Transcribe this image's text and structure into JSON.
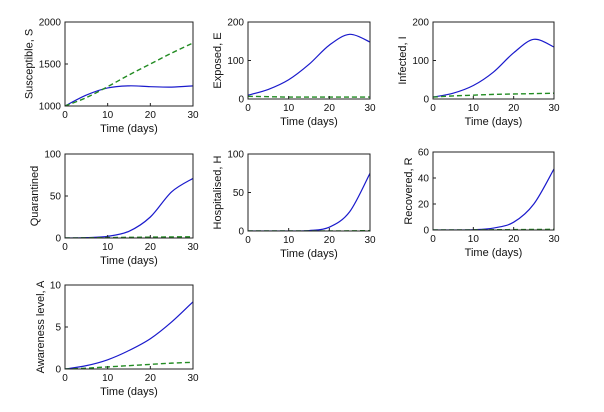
{
  "chart_data": [
    {
      "type": "line",
      "id": "susceptible",
      "xlabel": "Time (days)",
      "ylabel": "Susceptible, S",
      "xlim": [
        0,
        30
      ],
      "ylim": [
        1000,
        2000
      ],
      "xticks": [
        0,
        10,
        20,
        30
      ],
      "xtick_labels": [
        "0",
        "10",
        "20",
        "30"
      ],
      "yticks": [
        1000,
        1500,
        2000
      ],
      "ytick_labels": [
        "1000",
        "1500",
        "2000"
      ],
      "x": [
        0,
        5,
        10,
        15,
        20,
        25,
        30
      ],
      "series": [
        {
          "name": "solid",
          "style": "solid",
          "color": "#1a1acc",
          "values": [
            1000,
            1130,
            1215,
            1240,
            1230,
            1225,
            1240
          ]
        },
        {
          "name": "dashed",
          "style": "dashed",
          "color": "#228b22",
          "values": [
            1000,
            1100,
            1230,
            1370,
            1500,
            1630,
            1750
          ]
        }
      ]
    },
    {
      "type": "line",
      "id": "exposed",
      "xlabel": "Time (days)",
      "ylabel": "Exposed, E",
      "xlim": [
        0,
        30
      ],
      "ylim": [
        0,
        200
      ],
      "xticks": [
        0,
        10,
        20,
        30
      ],
      "xtick_labels": [
        "0",
        "10",
        "20",
        "30"
      ],
      "yticks": [
        0,
        100,
        200
      ],
      "ytick_labels": [
        "0",
        "100",
        "200"
      ],
      "x": [
        0,
        5,
        10,
        15,
        20,
        25,
        30
      ],
      "series": [
        {
          "name": "solid",
          "style": "solid",
          "color": "#1a1acc",
          "values": [
            10,
            25,
            50,
            90,
            140,
            168,
            148
          ]
        },
        {
          "name": "dashed",
          "style": "dashed",
          "color": "#228b22",
          "values": [
            7,
            6,
            5,
            5,
            5,
            5,
            5
          ]
        }
      ]
    },
    {
      "type": "line",
      "id": "infected",
      "xlabel": "Time (days)",
      "ylabel": "Infected, I",
      "xlim": [
        0,
        30
      ],
      "ylim": [
        0,
        200
      ],
      "xticks": [
        0,
        10,
        20,
        30
      ],
      "xtick_labels": [
        "0",
        "10",
        "20",
        "30"
      ],
      "yticks": [
        0,
        100,
        200
      ],
      "ytick_labels": [
        "0",
        "100",
        "200"
      ],
      "x": [
        0,
        5,
        10,
        15,
        20,
        25,
        30
      ],
      "series": [
        {
          "name": "solid",
          "style": "solid",
          "color": "#1a1acc",
          "values": [
            5,
            15,
            35,
            70,
            120,
            155,
            135
          ]
        },
        {
          "name": "dashed",
          "style": "dashed",
          "color": "#228b22",
          "values": [
            5,
            8,
            10,
            12,
            13,
            14,
            15
          ]
        }
      ]
    },
    {
      "type": "line",
      "id": "quarantined",
      "xlabel": "Time (days)",
      "ylabel": "Quarantined",
      "xlim": [
        0,
        30
      ],
      "ylim": [
        0,
        100
      ],
      "xticks": [
        0,
        10,
        20,
        30
      ],
      "xtick_labels": [
        "0",
        "10",
        "20",
        "30"
      ],
      "yticks": [
        0,
        50,
        100
      ],
      "ytick_labels": [
        "0",
        "50",
        "100"
      ],
      "x": [
        0,
        5,
        10,
        15,
        20,
        25,
        30
      ],
      "series": [
        {
          "name": "solid",
          "style": "solid",
          "color": "#1a1acc",
          "values": [
            0,
            0.5,
            2,
            8,
            25,
            55,
            71
          ]
        },
        {
          "name": "dashed",
          "style": "dashed",
          "color": "#228b22",
          "values": [
            0,
            0.2,
            0.5,
            0.8,
            1,
            1.3,
            1.5
          ]
        }
      ]
    },
    {
      "type": "line",
      "id": "hospitalised",
      "xlabel": "Time (days)",
      "ylabel": "Hospitalised, H",
      "xlim": [
        0,
        30
      ],
      "ylim": [
        0,
        100
      ],
      "xticks": [
        0,
        10,
        20,
        30
      ],
      "xtick_labels": [
        "0",
        "10",
        "20",
        "30"
      ],
      "yticks": [
        0,
        50,
        100
      ],
      "ytick_labels": [
        "0",
        "50",
        "100"
      ],
      "x": [
        0,
        5,
        10,
        15,
        20,
        25,
        30
      ],
      "series": [
        {
          "name": "solid",
          "style": "solid",
          "color": "#1a1acc",
          "values": [
            0,
            0,
            0,
            0.5,
            5,
            25,
            75
          ]
        },
        {
          "name": "dashed",
          "style": "dashed",
          "color": "#228b22",
          "values": [
            0,
            0,
            0,
            0,
            0,
            0.2,
            0.5
          ]
        }
      ]
    },
    {
      "type": "line",
      "id": "recovered",
      "xlabel": "Time (days)",
      "ylabel": "Recovered, R",
      "xlim": [
        0,
        30
      ],
      "ylim": [
        0,
        60
      ],
      "xticks": [
        0,
        10,
        20,
        30
      ],
      "xtick_labels": [
        "0",
        "10",
        "20",
        "30"
      ],
      "yticks": [
        0,
        20,
        40,
        60
      ],
      "ytick_labels": [
        "0",
        "20",
        "40",
        "60"
      ],
      "x": [
        0,
        5,
        10,
        15,
        20,
        25,
        30
      ],
      "series": [
        {
          "name": "solid",
          "style": "solid",
          "color": "#1a1acc",
          "values": [
            0,
            0,
            0.2,
            1.5,
            6,
            20,
            47
          ]
        },
        {
          "name": "dashed",
          "style": "dashed",
          "color": "#228b22",
          "values": [
            0,
            0,
            0.1,
            0.2,
            0.3,
            0.4,
            0.5
          ]
        }
      ]
    },
    {
      "type": "line",
      "id": "awareness",
      "xlabel": "Time (days)",
      "ylabel": "Awareness level, A",
      "xlim": [
        0,
        30
      ],
      "ylim": [
        0,
        10
      ],
      "xticks": [
        0,
        10,
        20,
        30
      ],
      "xtick_labels": [
        "0",
        "10",
        "20",
        "30"
      ],
      "yticks": [
        0,
        5,
        10
      ],
      "ytick_labels": [
        "0",
        "5",
        "10"
      ],
      "x": [
        0,
        5,
        10,
        15,
        20,
        25,
        30
      ],
      "series": [
        {
          "name": "solid",
          "style": "solid",
          "color": "#1a1acc",
          "values": [
            0,
            0.4,
            1.1,
            2.2,
            3.6,
            5.6,
            8
          ]
        },
        {
          "name": "dashed",
          "style": "dashed",
          "color": "#228b22",
          "values": [
            0,
            0.1,
            0.25,
            0.4,
            0.55,
            0.7,
            0.8
          ]
        }
      ]
    }
  ]
}
